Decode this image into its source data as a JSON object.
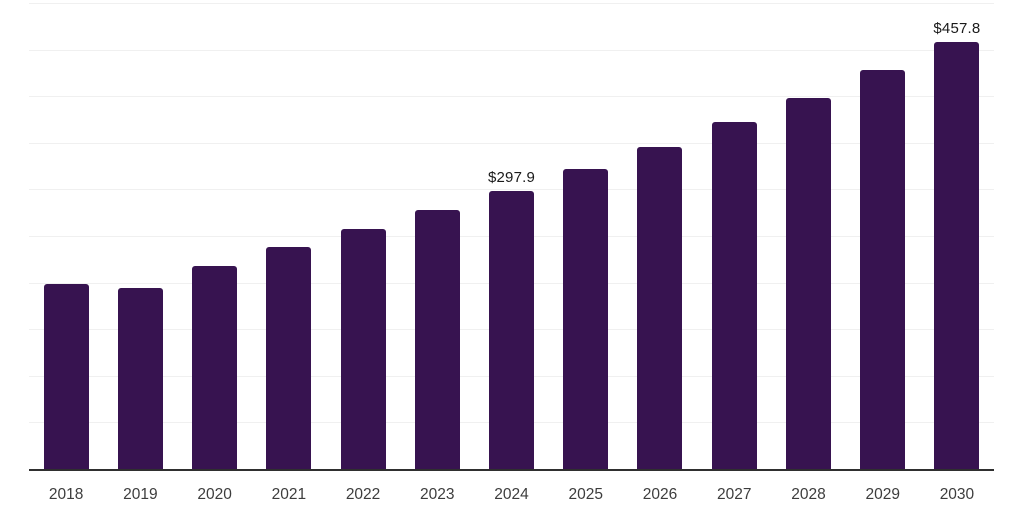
{
  "chart": {
    "background_color": "#ffffff",
    "bar_color": "#371350",
    "grid_color": "#f0f0f0",
    "axis_color": "#2f2f2f",
    "x_label_color": "#3d3d3d",
    "data_label_color": "#1a1a1a"
  },
  "chart_data": {
    "type": "bar",
    "title": "",
    "xlabel": "",
    "ylabel": "",
    "categories": [
      "2018",
      "2019",
      "2020",
      "2021",
      "2022",
      "2023",
      "2024",
      "2025",
      "2026",
      "2027",
      "2028",
      "2029",
      "2030"
    ],
    "values": [
      199.0,
      194.5,
      217.5,
      238.0,
      257.5,
      277.5,
      297.9,
      321.5,
      345.0,
      372.0,
      398.5,
      428.5,
      457.8
    ],
    "data_labels": [
      "",
      "",
      "",
      "",
      "",
      "",
      "$297.9",
      "",
      "",
      "",
      "",
      "",
      "$457.8"
    ],
    "ylim": [
      0,
      500
    ],
    "grid_interval": 50,
    "grid": "horizontal",
    "legend_position": "none",
    "y_axis_labels_visible": false
  }
}
